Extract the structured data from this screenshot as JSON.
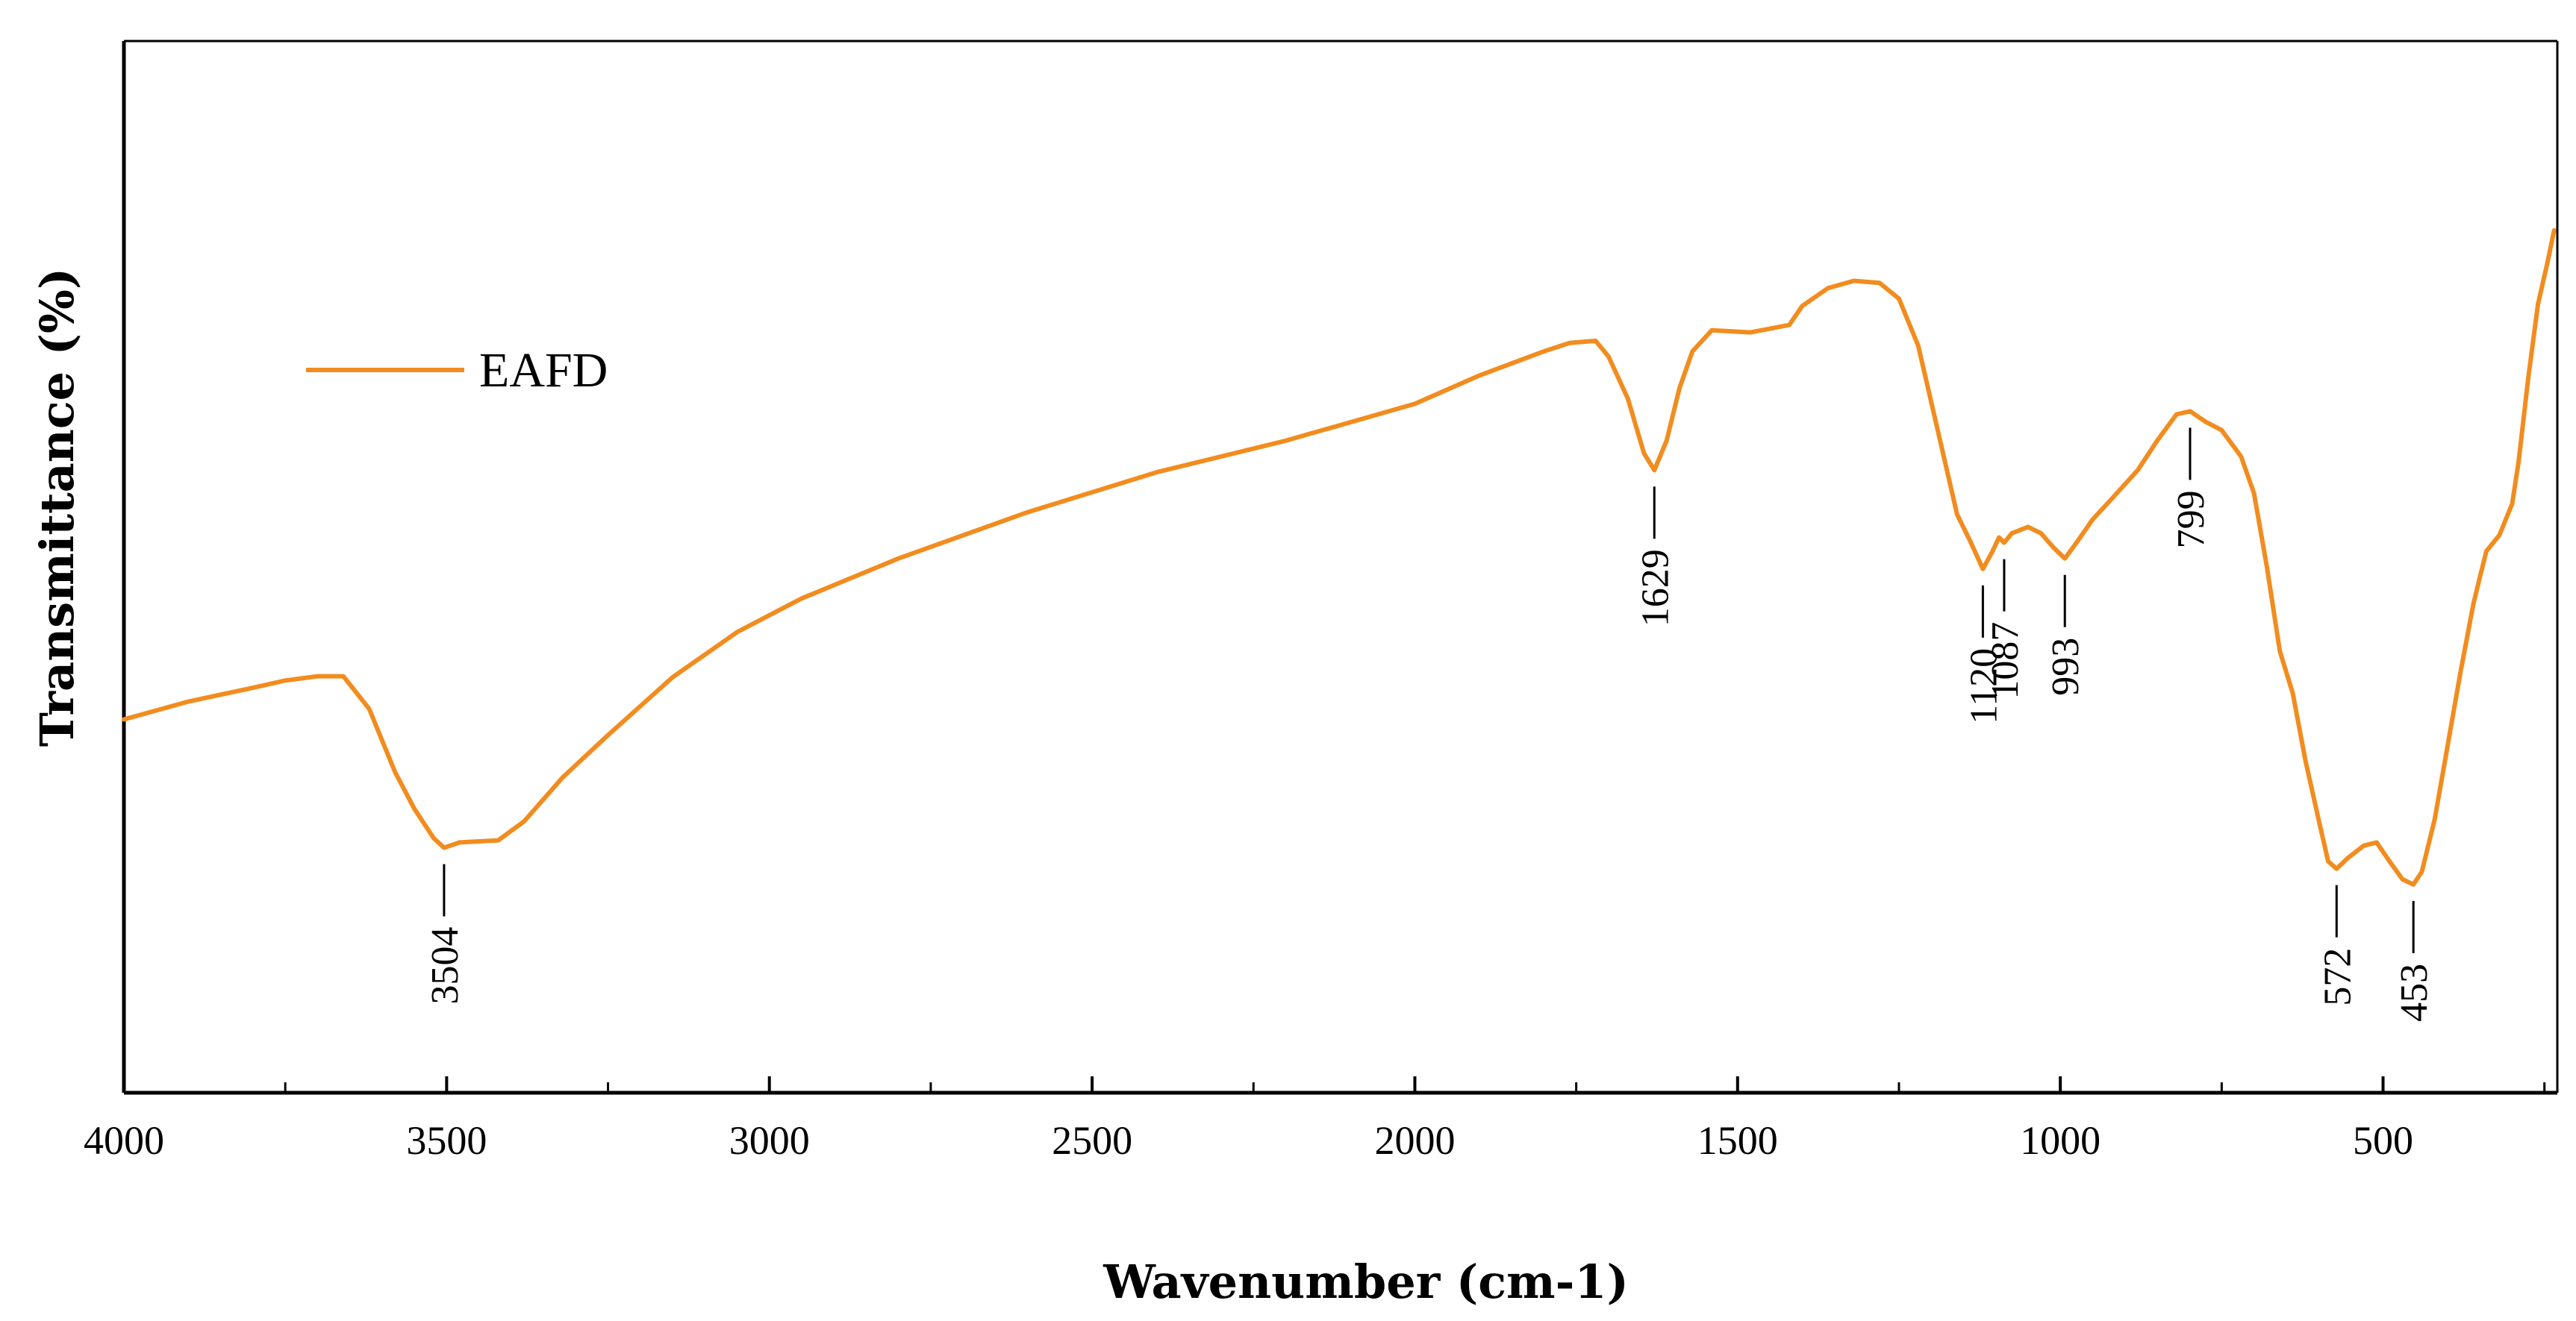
{
  "chart_data": {
    "type": "line",
    "title": "",
    "xlabel": "Wavenumber (cm-1)",
    "ylabel": "Transmittance (%)",
    "xlim": [
      4000,
      230
    ],
    "ylim": [
      0,
      100
    ],
    "x_reversed": true,
    "y_ticks_shown": false,
    "grid": false,
    "legend_position": "upper-left",
    "x_ticks": [
      4000,
      3500,
      3000,
      2500,
      2000,
      1500,
      1000,
      500
    ],
    "x_tick_labels": [
      "4000",
      "3500",
      "3000",
      "2500",
      "2000",
      "1500",
      "1000",
      "500"
    ],
    "series": [
      {
        "name": "EAFD",
        "color": "#f28c1e",
        "points": [
          [
            4000,
            35.5
          ],
          [
            3900,
            37.2
          ],
          [
            3800,
            38.5
          ],
          [
            3750,
            39.2
          ],
          [
            3700,
            39.6
          ],
          [
            3660,
            39.6
          ],
          [
            3620,
            36.5
          ],
          [
            3580,
            30.5
          ],
          [
            3550,
            27.0
          ],
          [
            3520,
            24.2
          ],
          [
            3504,
            23.3
          ],
          [
            3480,
            23.8
          ],
          [
            3420,
            24.0
          ],
          [
            3380,
            25.8
          ],
          [
            3320,
            30.0
          ],
          [
            3250,
            34.0
          ],
          [
            3150,
            39.5
          ],
          [
            3050,
            43.8
          ],
          [
            2950,
            47.0
          ],
          [
            2800,
            50.8
          ],
          [
            2600,
            55.2
          ],
          [
            2400,
            59.0
          ],
          [
            2200,
            62.0
          ],
          [
            2000,
            65.5
          ],
          [
            1900,
            68.2
          ],
          [
            1800,
            70.5
          ],
          [
            1760,
            71.3
          ],
          [
            1720,
            71.5
          ],
          [
            1700,
            70.0
          ],
          [
            1670,
            66.0
          ],
          [
            1645,
            60.8
          ],
          [
            1629,
            59.2
          ],
          [
            1610,
            62.0
          ],
          [
            1590,
            67.0
          ],
          [
            1570,
            70.5
          ],
          [
            1540,
            72.5
          ],
          [
            1480,
            72.3
          ],
          [
            1420,
            73.0
          ],
          [
            1400,
            74.8
          ],
          [
            1360,
            76.5
          ],
          [
            1320,
            77.2
          ],
          [
            1280,
            77.0
          ],
          [
            1250,
            75.5
          ],
          [
            1220,
            71.0
          ],
          [
            1190,
            63.0
          ],
          [
            1160,
            55.0
          ],
          [
            1140,
            52.5
          ],
          [
            1120,
            49.8
          ],
          [
            1105,
            51.5
          ],
          [
            1095,
            52.8
          ],
          [
            1087,
            52.3
          ],
          [
            1075,
            53.2
          ],
          [
            1050,
            53.8
          ],
          [
            1030,
            53.2
          ],
          [
            1010,
            51.8
          ],
          [
            993,
            50.8
          ],
          [
            975,
            52.3
          ],
          [
            950,
            54.5
          ],
          [
            920,
            56.5
          ],
          [
            880,
            59.2
          ],
          [
            850,
            62.0
          ],
          [
            820,
            64.5
          ],
          [
            799,
            64.8
          ],
          [
            775,
            63.8
          ],
          [
            750,
            63.0
          ],
          [
            720,
            60.5
          ],
          [
            700,
            57.0
          ],
          [
            680,
            50.0
          ],
          [
            660,
            42.0
          ],
          [
            640,
            38.0
          ],
          [
            620,
            31.5
          ],
          [
            600,
            26.0
          ],
          [
            585,
            22.0
          ],
          [
            572,
            21.3
          ],
          [
            555,
            22.3
          ],
          [
            530,
            23.5
          ],
          [
            510,
            23.8
          ],
          [
            490,
            22.0
          ],
          [
            470,
            20.3
          ],
          [
            453,
            19.8
          ],
          [
            440,
            21.0
          ],
          [
            420,
            26.0
          ],
          [
            400,
            33.0
          ],
          [
            380,
            40.0
          ],
          [
            360,
            46.5
          ],
          [
            350,
            49.0
          ],
          [
            340,
            51.5
          ],
          [
            320,
            53.0
          ],
          [
            300,
            56.0
          ],
          [
            290,
            60.0
          ],
          [
            275,
            68.0
          ],
          [
            260,
            75.0
          ],
          [
            245,
            79.0
          ],
          [
            235,
            82.0
          ]
        ]
      }
    ],
    "annotations": [
      {
        "label": "3504",
        "x": 3504
      },
      {
        "label": "1629",
        "x": 1629
      },
      {
        "label": "1120",
        "x": 1120
      },
      {
        "label": "1087",
        "x": 1087
      },
      {
        "label": "993",
        "x": 993
      },
      {
        "label": "799",
        "x": 799
      },
      {
        "label": "572",
        "x": 572
      },
      {
        "label": "453",
        "x": 453
      }
    ]
  }
}
